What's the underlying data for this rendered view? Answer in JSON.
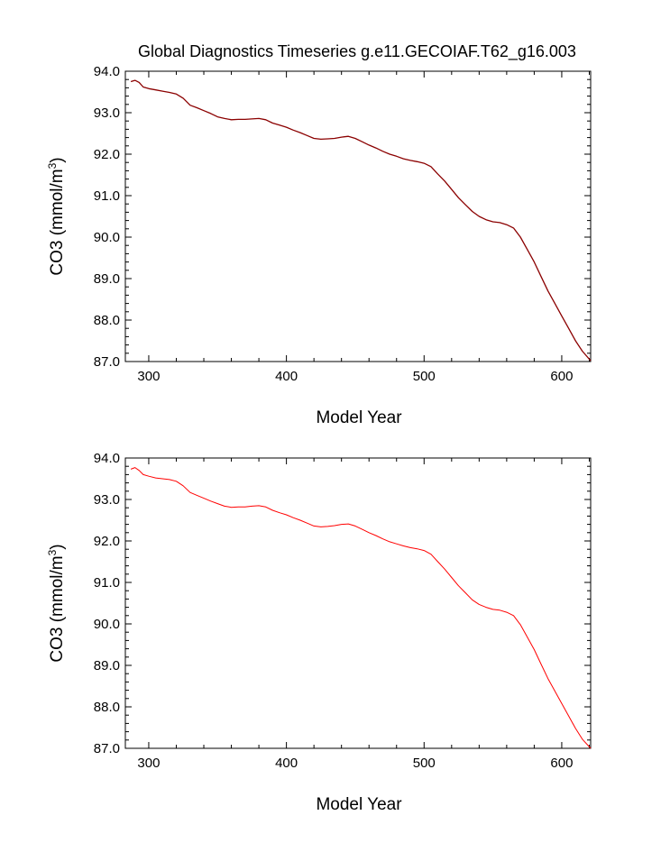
{
  "title": "Global Diagnostics Timeseries g.e11.GECOIAF.T62_g16.003",
  "chart_data": [
    {
      "type": "line",
      "title": "Global Diagnostics Timeseries g.e11.GECOIAF.T62_g16.003",
      "xlabel": "Model Year",
      "ylabel_main": "CO3 (mmol/m",
      "ylabel_sup": "3",
      "ylabel_close": ")",
      "xlim": [
        283,
        621
      ],
      "ylim": [
        87.0,
        94.0
      ],
      "xticks": [
        "300",
        "400",
        "500",
        "600"
      ],
      "yticks": [
        "87.0",
        "88.0",
        "89.0",
        "90.0",
        "91.0",
        "92.0",
        "93.0",
        "94.0"
      ],
      "grid": false,
      "series": [
        {
          "name": "CO3",
          "color": "#8b0000",
          "x": [
            287,
            290,
            293,
            296,
            300,
            305,
            310,
            315,
            320,
            325,
            330,
            335,
            340,
            345,
            350,
            355,
            360,
            365,
            370,
            375,
            380,
            385,
            390,
            395,
            400,
            405,
            410,
            415,
            420,
            425,
            430,
            435,
            440,
            445,
            450,
            455,
            460,
            465,
            470,
            475,
            480,
            485,
            490,
            495,
            500,
            505,
            510,
            515,
            520,
            525,
            530,
            535,
            540,
            545,
            550,
            555,
            560,
            565,
            570,
            575,
            580,
            585,
            590,
            595,
            600,
            605,
            610,
            615,
            621
          ],
          "y": [
            93.75,
            93.78,
            93.73,
            93.62,
            93.58,
            93.55,
            93.52,
            93.49,
            93.45,
            93.35,
            93.18,
            93.12,
            93.05,
            92.98,
            92.9,
            92.86,
            92.83,
            92.84,
            92.84,
            92.85,
            92.86,
            92.83,
            92.75,
            92.7,
            92.65,
            92.58,
            92.52,
            92.45,
            92.38,
            92.36,
            92.37,
            92.38,
            92.41,
            92.43,
            92.38,
            92.3,
            92.22,
            92.15,
            92.07,
            92.0,
            91.95,
            91.89,
            91.85,
            91.82,
            91.78,
            91.7,
            91.52,
            91.35,
            91.15,
            90.95,
            90.78,
            90.62,
            90.5,
            90.42,
            90.37,
            90.35,
            90.3,
            90.22,
            90.0,
            89.7,
            89.4,
            89.05,
            88.7,
            88.4,
            88.1,
            87.8,
            87.5,
            87.25,
            87.02
          ]
        }
      ]
    },
    {
      "type": "line",
      "title": "",
      "xlabel": "Model Year",
      "ylabel_main": "CO3 (mmol/m",
      "ylabel_sup": "3",
      "ylabel_close": ")",
      "xlim": [
        283,
        621
      ],
      "ylim": [
        87.0,
        94.0
      ],
      "xticks": [
        "300",
        "400",
        "500",
        "600"
      ],
      "yticks": [
        "87.0",
        "88.0",
        "89.0",
        "90.0",
        "91.0",
        "92.0",
        "93.0",
        "94.0"
      ],
      "grid": false,
      "series": [
        {
          "name": "CO3",
          "color": "#ff0000",
          "x": [
            287,
            290,
            293,
            296,
            300,
            305,
            310,
            315,
            320,
            325,
            330,
            335,
            340,
            345,
            350,
            355,
            360,
            365,
            370,
            375,
            380,
            385,
            390,
            395,
            400,
            405,
            410,
            415,
            420,
            425,
            430,
            435,
            440,
            445,
            450,
            455,
            460,
            465,
            470,
            475,
            480,
            485,
            490,
            495,
            500,
            505,
            510,
            515,
            520,
            525,
            530,
            535,
            540,
            545,
            550,
            555,
            560,
            565,
            570,
            575,
            580,
            585,
            590,
            595,
            600,
            605,
            610,
            615,
            621
          ],
          "y": [
            93.73,
            93.77,
            93.7,
            93.6,
            93.56,
            93.52,
            93.5,
            93.48,
            93.44,
            93.33,
            93.17,
            93.1,
            93.03,
            92.96,
            92.9,
            92.84,
            92.81,
            92.82,
            92.82,
            92.84,
            92.85,
            92.82,
            92.74,
            92.68,
            92.63,
            92.56,
            92.5,
            92.43,
            92.36,
            92.34,
            92.35,
            92.37,
            92.4,
            92.41,
            92.36,
            92.28,
            92.2,
            92.13,
            92.05,
            91.98,
            91.93,
            91.88,
            91.84,
            91.81,
            91.77,
            91.68,
            91.5,
            91.32,
            91.12,
            90.92,
            90.75,
            90.58,
            90.47,
            90.4,
            90.35,
            90.33,
            90.28,
            90.2,
            89.98,
            89.68,
            89.38,
            89.03,
            88.68,
            88.38,
            88.08,
            87.78,
            87.48,
            87.22,
            87.0
          ]
        }
      ]
    }
  ]
}
